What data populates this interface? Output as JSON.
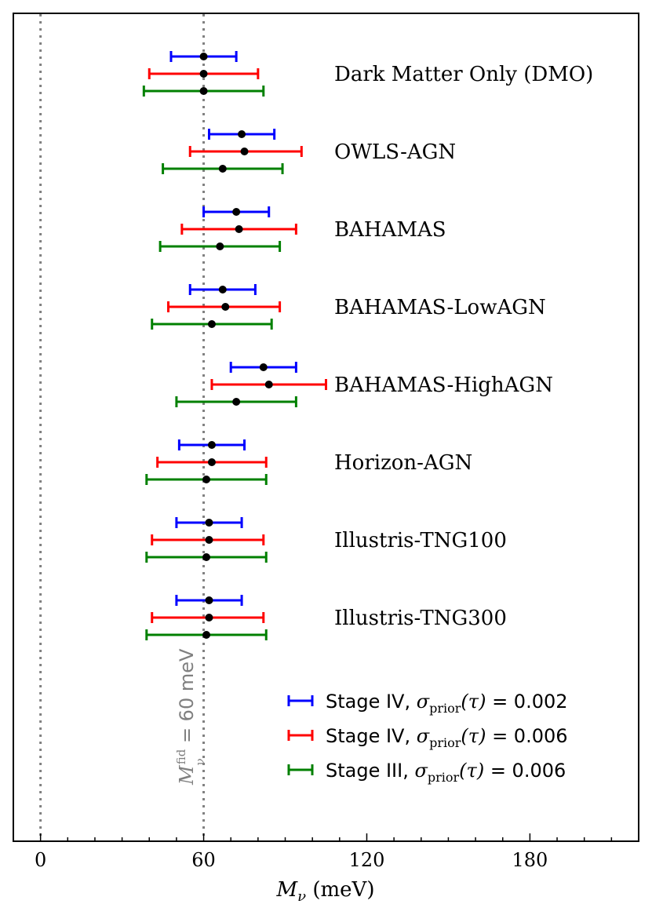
{
  "chart_data": {
    "type": "errorbar",
    "xlim": [
      -10,
      220
    ],
    "xticks": [
      0,
      60,
      120,
      180
    ],
    "xtick_labels": [
      "0",
      "60",
      "120",
      "180"
    ],
    "x_minor_step": 10,
    "xlabel_symbol": "M",
    "xlabel_subscript": "ν",
    "xlabel_unit": " (meV)",
    "vertical_lines": [
      0,
      60
    ],
    "fiducial_annotation": {
      "symbol": "M",
      "subscript": "ν",
      "superscript": "fid",
      "rest": " = 60 meV"
    },
    "models": [
      "Dark Matter Only (DMO)",
      "OWLS-AGN",
      "BAHAMAS",
      "BAHAMAS-LowAGN",
      "BAHAMAS-HighAGN",
      "Horizon-AGN",
      "Illustris-TNG100",
      "Illustris-TNG300"
    ],
    "series": [
      {
        "name": "Stage IV, σprior(τ) = 0.002",
        "color": "#0000ff",
        "points": [
          {
            "value": 60,
            "low": 48,
            "high": 72
          },
          {
            "value": 74,
            "low": 62,
            "high": 86
          },
          {
            "value": 72,
            "low": 60,
            "high": 84
          },
          {
            "value": 67,
            "low": 55,
            "high": 79
          },
          {
            "value": 82,
            "low": 70,
            "high": 94
          },
          {
            "value": 63,
            "low": 51,
            "high": 75
          },
          {
            "value": 62,
            "low": 50,
            "high": 74
          },
          {
            "value": 62,
            "low": 50,
            "high": 74
          }
        ]
      },
      {
        "name": "Stage IV, σprior(τ) = 0.006",
        "color": "#ff0000",
        "points": [
          {
            "value": 60,
            "low": 40,
            "high": 80
          },
          {
            "value": 75,
            "low": 55,
            "high": 96
          },
          {
            "value": 73,
            "low": 52,
            "high": 94
          },
          {
            "value": 68,
            "low": 47,
            "high": 88
          },
          {
            "value": 84,
            "low": 63,
            "high": 105
          },
          {
            "value": 63,
            "low": 43,
            "high": 83
          },
          {
            "value": 62,
            "low": 41,
            "high": 82
          },
          {
            "value": 62,
            "low": 41,
            "high": 82
          }
        ]
      },
      {
        "name": "Stage III, σprior(τ) = 0.006",
        "color": "#008000",
        "points": [
          {
            "value": 60,
            "low": 38,
            "high": 82
          },
          {
            "value": 67,
            "low": 45,
            "high": 89
          },
          {
            "value": 66,
            "low": 44,
            "high": 88
          },
          {
            "value": 63,
            "low": 41,
            "high": 85
          },
          {
            "value": 72,
            "low": 50,
            "high": 94
          },
          {
            "value": 61,
            "low": 39,
            "high": 83
          },
          {
            "value": 61,
            "low": 39,
            "high": 83
          },
          {
            "value": 61,
            "low": 39,
            "high": 83
          }
        ]
      }
    ],
    "legend": {
      "location": "lower-right",
      "entries": [
        {
          "prefix": "Stage IV, ",
          "sigma": "σ",
          "sub": "prior",
          "tau": "(τ)",
          "rest": " = 0.002",
          "color": "#0000ff"
        },
        {
          "prefix": "Stage IV, ",
          "sigma": "σ",
          "sub": "prior",
          "tau": "(τ)",
          "rest": " = 0.006",
          "color": "#ff0000"
        },
        {
          "prefix": "Stage III, ",
          "sigma": "σ",
          "sub": "prior",
          "tau": "(τ)",
          "rest": " = 0.006",
          "color": "#008000"
        }
      ]
    }
  }
}
